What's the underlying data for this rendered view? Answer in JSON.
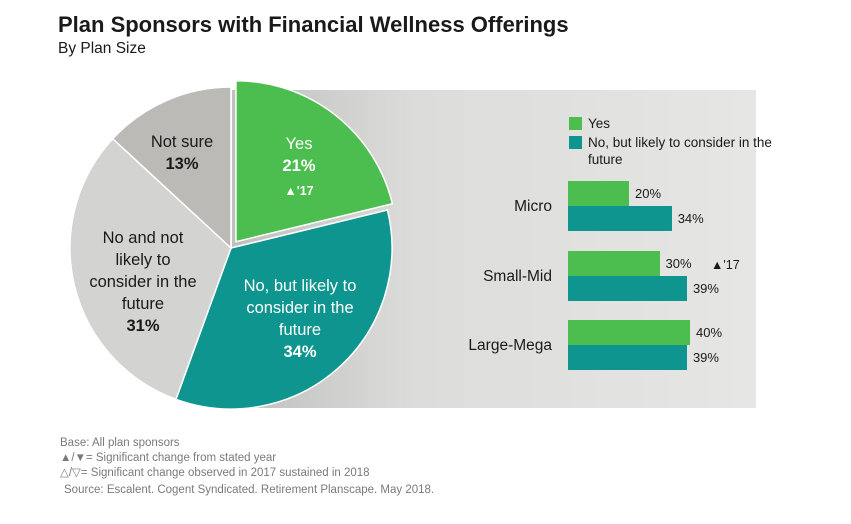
{
  "header": {
    "title": "Plan Sponsors with Financial Wellness Offerings",
    "subtitle": "By Plan Size"
  },
  "colors": {
    "yes": "#4cbe4f",
    "no_but_likely": "#0f958f",
    "no_not_likely": "#d3d3d1",
    "not_sure": "#bbbab7"
  },
  "pie_labels": {
    "yes": {
      "line1": "Yes",
      "pct": "21%",
      "note": "▲'17"
    },
    "no_but_likely": {
      "line1": "No, but likely to consider in the future",
      "pct": "34%"
    },
    "no_not_likely": {
      "line1": "No and not likely to consider in the future",
      "pct": "31%"
    },
    "not_sure": {
      "line1": "Not sure",
      "pct": "13%"
    }
  },
  "legend": {
    "yes": "Yes",
    "no_but_likely": "No, but likely to consider in the future"
  },
  "annotations": {
    "small_mid_yes": "▲'17"
  },
  "footer": {
    "base": "Base: All plan sponsors",
    "note1": "▲/▼= Significant change from stated year",
    "note2": "△/▽= Significant change observed in 2017 sustained in 2018",
    "source": "Source: Escalent. Cogent Syndicated. Retirement Planscape. May 2018."
  },
  "chart_data": [
    {
      "type": "pie",
      "title": "Plan Sponsors with Financial Wellness Offerings",
      "subtitle": "By Plan Size",
      "slices": [
        {
          "label": "Yes",
          "value": 21,
          "exploded": true
        },
        {
          "label": "No, but likely to consider in the future",
          "value": 34
        },
        {
          "label": "No and not likely to consider in the future",
          "value": 31
        },
        {
          "label": "Not sure",
          "value": 13
        }
      ]
    },
    {
      "type": "bar",
      "orientation": "horizontal",
      "categories": [
        "Micro",
        "Small-Mid",
        "Large-Mega"
      ],
      "series": [
        {
          "name": "Yes",
          "values": [
            20,
            30,
            40
          ],
          "labels": [
            "20%",
            "30%",
            "40%"
          ]
        },
        {
          "name": "No, but likely to consider in the future",
          "values": [
            34,
            39,
            39
          ],
          "labels": [
            "34%",
            "39%",
            "39%"
          ]
        }
      ],
      "legend_position": "top",
      "xlim": [
        0,
        100
      ],
      "grid": false
    }
  ]
}
